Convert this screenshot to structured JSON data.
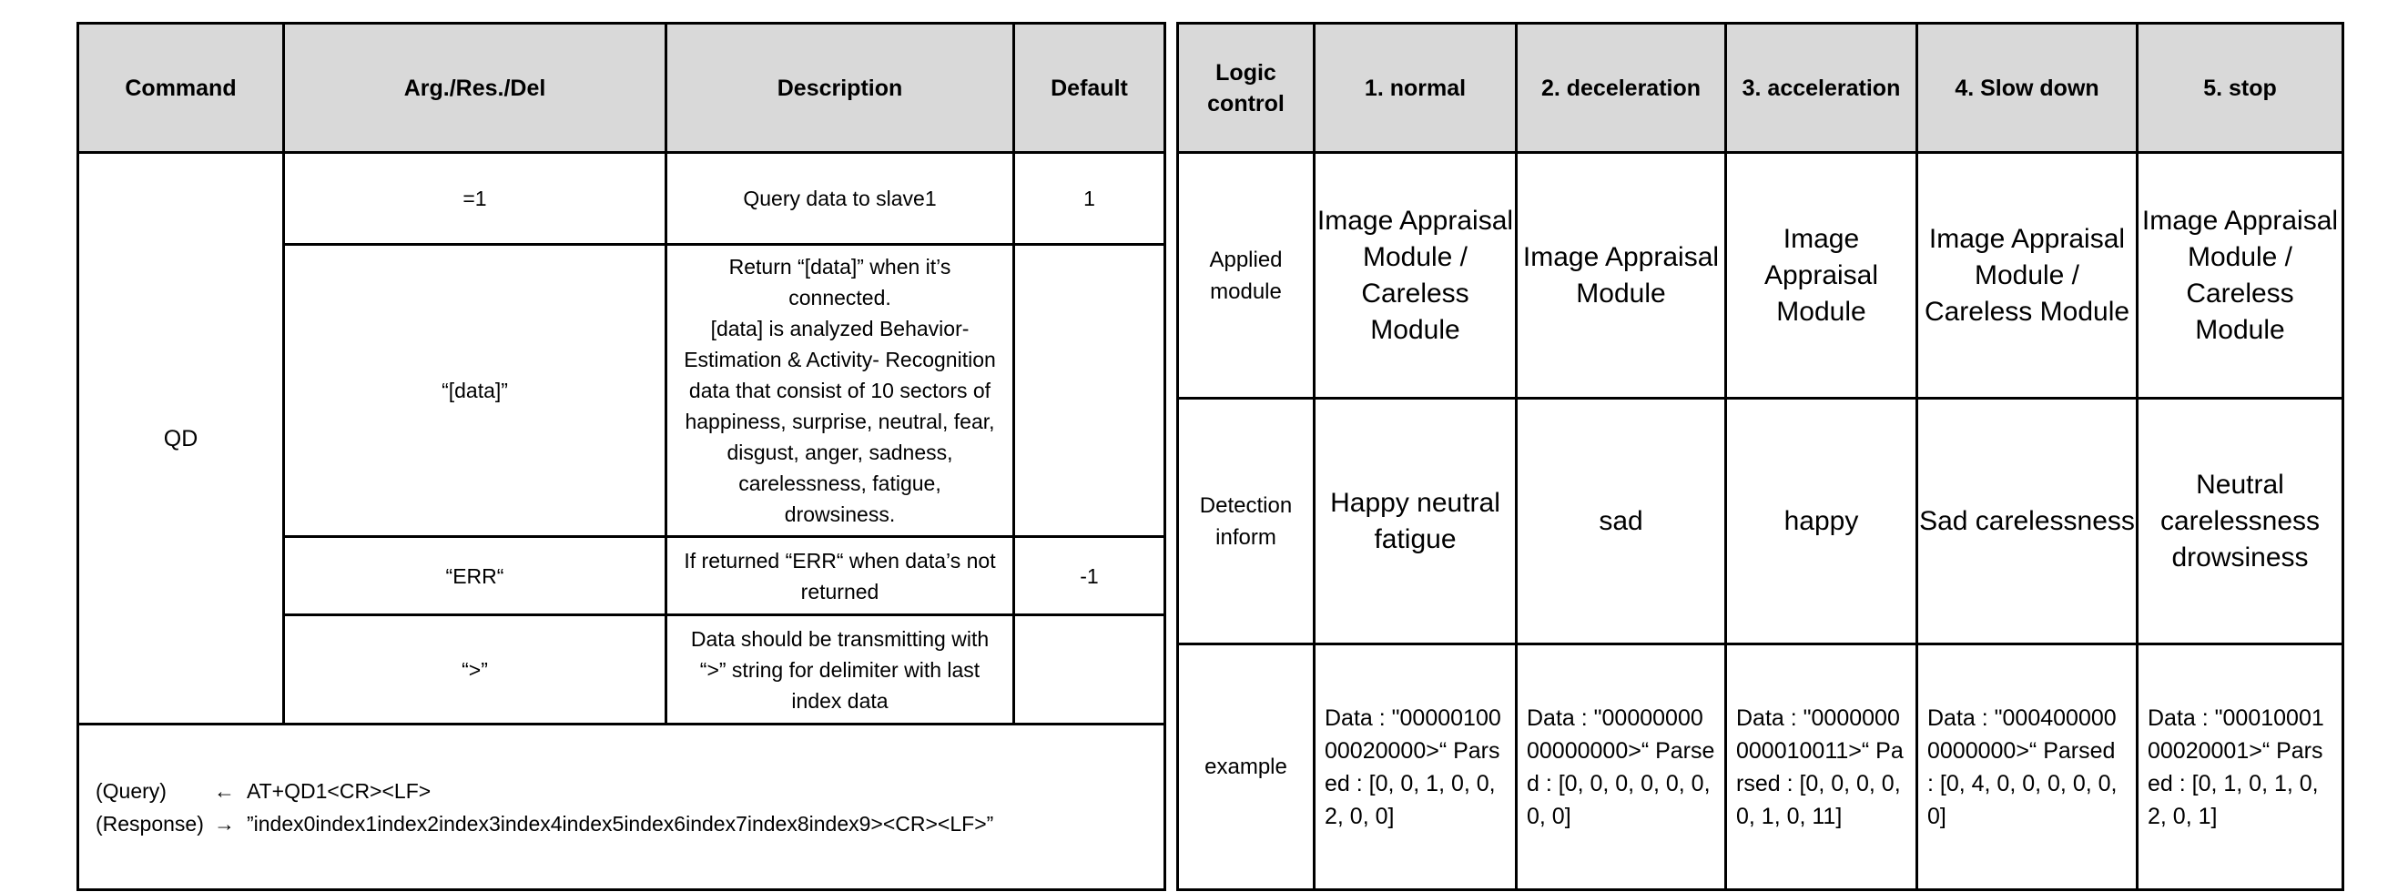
{
  "command_table": {
    "headers": [
      "Command",
      "Arg./Res./Del",
      "Description",
      "Default"
    ],
    "command": "QD",
    "rows": [
      {
        "arg": "=1",
        "description": "Query data to slave1",
        "default": "1"
      },
      {
        "arg": "“[data]”",
        "description": "Return “[data]” when it’s connected.\n[data] is analyzed Behavior-Estimation & Activity- Recognition data that consist of 10 sectors of happiness, surprise, neutral, fear, disgust, anger, sadness, carelessness, fatigue, drowsiness.",
        "default": ""
      },
      {
        "arg": "“ERR“",
        "description": "If returned “ERR“ when data’s not returned",
        "default": "-1"
      },
      {
        "arg": "“>”",
        "description": "Data should be transmitting with “>” string for delimiter with last index data",
        "default": ""
      }
    ],
    "example": {
      "query_tag": "(Query)",
      "query_arrow": "←",
      "query_text": "AT+QD1<CR><LF>",
      "response_tag": "(Response)",
      "response_arrow": "→",
      "response_text": "”index0index1index2index3index4index5index6index7index8index9><CR><LF>”"
    }
  },
  "logic_table": {
    "corner": "Logic control",
    "columns": [
      "1. normal",
      "2. deceleration",
      "3. acceleration",
      "4. Slow down",
      "5. stop"
    ],
    "rows": [
      {
        "label": "Applied module",
        "cells": [
          "Image Appraisal Module / Careless Module",
          "Image Appraisal Module",
          "Image Appraisal Module",
          "Image Appraisal Module / Careless Module",
          "Image Appraisal Module / Careless Module"
        ]
      },
      {
        "label": "Detection inform",
        "cells": [
          "Happy neutral fatigue",
          "sad",
          "happy",
          "Sad carelessness",
          "Neutral carelessness drowsiness"
        ]
      },
      {
        "label": "example",
        "cells": [
          "Data : \"0000010000020000>“ Parsed : [0, 0, 1, 0, 0, 2, 0, 0]",
          "Data : \"0000000000000000>“ Parsed : [0, 0, 0, 0, 0, 0, 0, 0]",
          "Data : \"0000000000010011>“ Parsed : [0, 0, 0, 0, 0, 1, 0, 11]",
          "Data : \"0004000000000000>“ Parsed : [0, 4, 0, 0, 0, 0, 0, 0]",
          "Data : \"0001000100020001>“ Parsed : [0, 1, 0, 1, 0, 2, 0, 1]"
        ]
      }
    ]
  }
}
